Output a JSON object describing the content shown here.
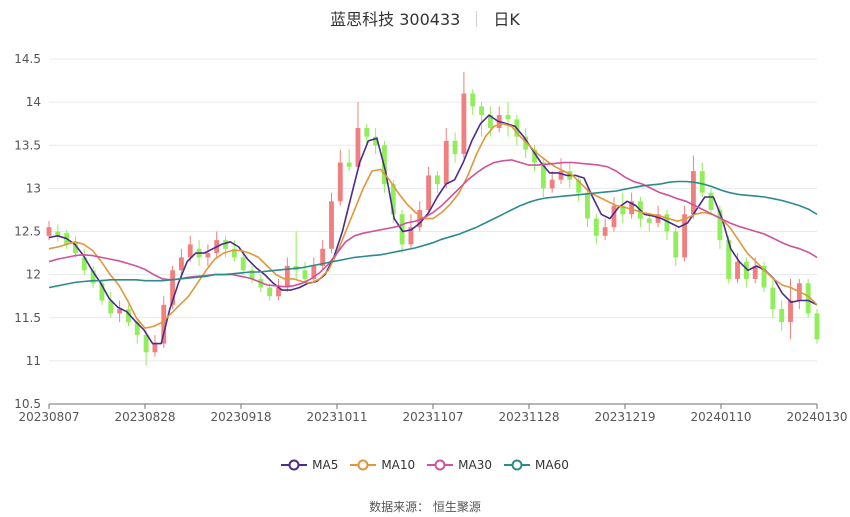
{
  "title": {
    "stock": "蓝思科技 300433",
    "period": "日K"
  },
  "source": "数据来源： 恒生聚源",
  "chart_data": {
    "type": "candlestick",
    "x_ticks": [
      "20230807",
      "20230828",
      "20230918",
      "20231011",
      "20231107",
      "20231128",
      "20231219",
      "20240110",
      "20240130"
    ],
    "y_ticks": [
      "10.5",
      "11",
      "11.5",
      "12",
      "12.5",
      "13",
      "13.5",
      "14",
      "14.5"
    ],
    "ylim": [
      10.5,
      14.5
    ],
    "grid": true,
    "legend_position": "bottom",
    "colors": {
      "up": "#f08080",
      "down": "#90ee5a",
      "MA5": "#4b2c8c",
      "MA10": "#e2963c",
      "MA30": "#d0529a",
      "MA60": "#2e8a8a"
    },
    "series": [
      {
        "name": "MA5",
        "values": [
          12.43,
          12.45,
          12.42,
          12.35,
          12.22,
          12.05,
          11.9,
          11.72,
          11.62,
          11.57,
          11.46,
          11.36,
          11.2,
          11.2,
          11.6,
          11.9,
          12.15,
          12.25,
          12.25,
          12.3,
          12.35,
          12.38,
          12.32,
          12.18,
          12.08,
          12,
          11.9,
          11.82,
          11.82,
          11.85,
          11.9,
          11.92,
          12.0,
          12.2,
          12.5,
          12.9,
          13.3,
          13.55,
          13.58,
          13.2,
          12.65,
          12.5,
          12.52,
          12.6,
          12.72,
          12.9,
          13.05,
          13.1,
          13.3,
          13.55,
          13.75,
          13.85,
          13.78,
          13.75,
          13.72,
          13.6,
          13.45,
          13.3,
          13.18,
          13.18,
          13.15,
          13.15,
          13.12,
          12.9,
          12.7,
          12.65,
          12.78,
          12.85,
          12.8,
          12.7,
          12.68,
          12.65,
          12.6,
          12.55,
          12.6,
          12.75,
          12.9,
          12.9,
          12.65,
          12.3,
          12.15,
          12.05,
          12.1,
          12.05,
          11.95,
          11.78,
          11.68,
          11.7,
          11.7,
          11.65
        ]
      },
      {
        "name": "MA10",
        "values": [
          12.3,
          12.32,
          12.35,
          12.38,
          12.35,
          12.28,
          12.15,
          12.0,
          11.88,
          11.7,
          11.5,
          11.38,
          11.4,
          11.45,
          11.55,
          11.65,
          11.75,
          11.9,
          12.05,
          12.18,
          12.25,
          12.28,
          12.28,
          12.25,
          12.2,
          12.1,
          12.0,
          11.95,
          11.95,
          11.92,
          11.9,
          11.95,
          12.05,
          12.25,
          12.5,
          12.75,
          13.0,
          13.2,
          13.22,
          13.1,
          12.95,
          12.82,
          12.72,
          12.65,
          12.65,
          12.72,
          12.82,
          12.95,
          13.15,
          13.4,
          13.6,
          13.72,
          13.75,
          13.72,
          13.6,
          13.5,
          13.4,
          13.32,
          13.25,
          13.2,
          13.15,
          13.05,
          12.95,
          12.9,
          12.85,
          12.8,
          12.78,
          12.75,
          12.72,
          12.7,
          12.68,
          12.65,
          12.62,
          12.65,
          12.7,
          12.72,
          12.7,
          12.65,
          12.55,
          12.4,
          12.25,
          12.15,
          12.05,
          11.95,
          11.88,
          11.85,
          11.8,
          11.75,
          11.65
        ]
      },
      {
        "name": "MA30",
        "values": [
          12.15,
          12.18,
          12.2,
          12.22,
          12.23,
          12.22,
          12.2,
          12.18,
          12.16,
          12.13,
          12.1,
          12.06,
          12.0,
          11.95,
          11.94,
          11.95,
          11.97,
          11.98,
          11.99,
          12.0,
          12.0,
          12.0,
          11.98,
          11.96,
          11.92,
          11.88,
          11.87,
          11.86,
          11.87,
          11.9,
          11.95,
          12.02,
          12.12,
          12.25,
          12.38,
          12.45,
          12.48,
          12.5,
          12.52,
          12.54,
          12.56,
          12.6,
          12.62,
          12.66,
          12.72,
          12.8,
          12.9,
          13.0,
          13.1,
          13.18,
          13.25,
          13.3,
          13.32,
          13.33,
          13.3,
          13.27,
          13.27,
          13.28,
          13.29,
          13.3,
          13.3,
          13.29,
          13.28,
          13.27,
          13.25,
          13.2,
          13.13,
          13.08,
          13.05,
          13.0,
          12.95,
          12.92,
          12.88,
          12.85,
          12.8,
          12.75,
          12.7,
          12.65,
          12.6,
          12.56,
          12.53,
          12.5,
          12.47,
          12.42,
          12.37,
          12.33,
          12.3,
          12.26,
          12.2
        ]
      },
      {
        "name": "MA60",
        "values": [
          11.85,
          11.87,
          11.89,
          11.91,
          11.92,
          11.93,
          11.93,
          11.94,
          11.94,
          11.94,
          11.94,
          11.93,
          11.93,
          11.93,
          11.94,
          11.95,
          11.96,
          11.97,
          11.98,
          12.0,
          12.0,
          12.01,
          12.02,
          12.03,
          12.03,
          12.04,
          12.05,
          12.06,
          12.07,
          12.08,
          12.1,
          12.12,
          12.14,
          12.16,
          12.18,
          12.2,
          12.21,
          12.22,
          12.23,
          12.25,
          12.27,
          12.29,
          12.31,
          12.34,
          12.37,
          12.41,
          12.44,
          12.47,
          12.51,
          12.55,
          12.6,
          12.65,
          12.7,
          12.75,
          12.8,
          12.84,
          12.87,
          12.89,
          12.9,
          12.91,
          12.92,
          12.93,
          12.94,
          12.95,
          12.96,
          12.97,
          12.99,
          13.01,
          13.03,
          13.04,
          13.05,
          13.07,
          13.08,
          13.08,
          13.07,
          13.05,
          13.02,
          12.98,
          12.95,
          12.93,
          12.92,
          12.91,
          12.9,
          12.88,
          12.86,
          12.83,
          12.8,
          12.76,
          12.7
        ]
      }
    ],
    "candles": [
      {
        "o": 12.45,
        "c": 12.55,
        "h": 12.62,
        "l": 12.4
      },
      {
        "o": 12.5,
        "c": 12.45,
        "h": 12.58,
        "l": 12.38
      },
      {
        "o": 12.48,
        "c": 12.35,
        "h": 12.52,
        "l": 12.3
      },
      {
        "o": 12.38,
        "c": 12.25,
        "h": 12.45,
        "l": 12.2
      },
      {
        "o": 12.2,
        "c": 12.05,
        "h": 12.3,
        "l": 12.0
      },
      {
        "o": 12.05,
        "c": 11.9,
        "h": 12.1,
        "l": 11.85
      },
      {
        "o": 11.9,
        "c": 11.7,
        "h": 11.95,
        "l": 11.65
      },
      {
        "o": 11.7,
        "c": 11.55,
        "h": 11.8,
        "l": 11.5
      },
      {
        "o": 11.55,
        "c": 11.6,
        "h": 11.7,
        "l": 11.45
      },
      {
        "o": 11.6,
        "c": 11.45,
        "h": 11.65,
        "l": 11.4
      },
      {
        "o": 11.45,
        "c": 11.3,
        "h": 11.5,
        "l": 11.2
      },
      {
        "o": 11.3,
        "c": 11.1,
        "h": 11.35,
        "l": 10.95
      },
      {
        "o": 11.1,
        "c": 11.2,
        "h": 11.3,
        "l": 11.05
      },
      {
        "o": 11.2,
        "c": 11.65,
        "h": 11.75,
        "l": 11.15
      },
      {
        "o": 11.65,
        "c": 12.05,
        "h": 12.1,
        "l": 11.6
      },
      {
        "o": 12.05,
        "c": 12.2,
        "h": 12.3,
        "l": 11.95
      },
      {
        "o": 12.2,
        "c": 12.35,
        "h": 12.45,
        "l": 12.15
      },
      {
        "o": 12.3,
        "c": 12.2,
        "h": 12.4,
        "l": 12.1
      },
      {
        "o": 12.2,
        "c": 12.25,
        "h": 12.35,
        "l": 12.1
      },
      {
        "o": 12.25,
        "c": 12.4,
        "h": 12.5,
        "l": 12.2
      },
      {
        "o": 12.4,
        "c": 12.3,
        "h": 12.45,
        "l": 12.2
      },
      {
        "o": 12.3,
        "c": 12.2,
        "h": 12.4,
        "l": 12.15
      },
      {
        "o": 12.2,
        "c": 12.05,
        "h": 12.25,
        "l": 12.0
      },
      {
        "o": 12.05,
        "c": 11.95,
        "h": 12.1,
        "l": 11.9
      },
      {
        "o": 11.95,
        "c": 11.85,
        "h": 12.0,
        "l": 11.8
      },
      {
        "o": 11.85,
        "c": 11.75,
        "h": 11.9,
        "l": 11.7
      },
      {
        "o": 11.75,
        "c": 11.85,
        "h": 11.95,
        "l": 11.7
      },
      {
        "o": 11.85,
        "c": 12.1,
        "h": 12.2,
        "l": 11.8
      },
      {
        "o": 12.1,
        "c": 12.05,
        "h": 12.5,
        "l": 11.95
      },
      {
        "o": 12.05,
        "c": 11.95,
        "h": 12.15,
        "l": 11.9
      },
      {
        "o": 11.95,
        "c": 12.1,
        "h": 12.2,
        "l": 11.9
      },
      {
        "o": 12.1,
        "c": 12.3,
        "h": 12.4,
        "l": 12.05
      },
      {
        "o": 12.3,
        "c": 12.85,
        "h": 12.95,
        "l": 12.25
      },
      {
        "o": 12.85,
        "c": 13.3,
        "h": 13.45,
        "l": 12.8
      },
      {
        "o": 13.3,
        "c": 13.25,
        "h": 13.45,
        "l": 13.2
      },
      {
        "o": 13.25,
        "c": 13.7,
        "h": 14.0,
        "l": 13.2
      },
      {
        "o": 13.7,
        "c": 13.6,
        "h": 13.75,
        "l": 13.5
      },
      {
        "o": 13.6,
        "c": 13.5,
        "h": 13.7,
        "l": 13.4
      },
      {
        "o": 13.5,
        "c": 13.05,
        "h": 13.55,
        "l": 12.95
      },
      {
        "o": 13.05,
        "c": 12.7,
        "h": 13.1,
        "l": 12.6
      },
      {
        "o": 12.7,
        "c": 12.35,
        "h": 12.75,
        "l": 12.25
      },
      {
        "o": 12.35,
        "c": 12.55,
        "h": 12.7,
        "l": 12.3
      },
      {
        "o": 12.55,
        "c": 12.75,
        "h": 12.85,
        "l": 12.5
      },
      {
        "o": 12.75,
        "c": 13.15,
        "h": 13.25,
        "l": 12.7
      },
      {
        "o": 13.15,
        "c": 13.05,
        "h": 13.2,
        "l": 12.95
      },
      {
        "o": 13.05,
        "c": 13.55,
        "h": 13.7,
        "l": 13.0
      },
      {
        "o": 13.55,
        "c": 13.4,
        "h": 13.65,
        "l": 13.3
      },
      {
        "o": 13.4,
        "c": 14.1,
        "h": 14.35,
        "l": 13.35
      },
      {
        "o": 14.1,
        "c": 13.95,
        "h": 14.15,
        "l": 13.85
      },
      {
        "o": 13.95,
        "c": 13.85,
        "h": 14.0,
        "l": 13.6
      },
      {
        "o": 13.85,
        "c": 13.7,
        "h": 13.95,
        "l": 13.6
      },
      {
        "o": 13.7,
        "c": 13.85,
        "h": 13.95,
        "l": 13.65
      },
      {
        "o": 13.85,
        "c": 13.8,
        "h": 14.0,
        "l": 13.6
      },
      {
        "o": 13.8,
        "c": 13.6,
        "h": 13.85,
        "l": 13.5
      },
      {
        "o": 13.6,
        "c": 13.45,
        "h": 13.7,
        "l": 13.35
      },
      {
        "o": 13.45,
        "c": 13.3,
        "h": 13.5,
        "l": 13.2
      },
      {
        "o": 13.3,
        "c": 13.0,
        "h": 13.35,
        "l": 12.9
      },
      {
        "o": 13.0,
        "c": 13.1,
        "h": 13.2,
        "l": 12.95
      },
      {
        "o": 13.1,
        "c": 13.2,
        "h": 13.35,
        "l": 13.05
      },
      {
        "o": 13.2,
        "c": 13.1,
        "h": 13.3,
        "l": 13.0
      },
      {
        "o": 13.1,
        "c": 12.95,
        "h": 13.15,
        "l": 12.85
      },
      {
        "o": 12.95,
        "c": 12.65,
        "h": 13.0,
        "l": 12.55
      },
      {
        "o": 12.65,
        "c": 12.45,
        "h": 12.7,
        "l": 12.35
      },
      {
        "o": 12.45,
        "c": 12.55,
        "h": 12.65,
        "l": 12.4
      },
      {
        "o": 12.55,
        "c": 12.8,
        "h": 12.9,
        "l": 12.5
      },
      {
        "o": 12.8,
        "c": 12.7,
        "h": 12.95,
        "l": 12.6
      },
      {
        "o": 12.7,
        "c": 12.85,
        "h": 12.95,
        "l": 12.65
      },
      {
        "o": 12.85,
        "c": 12.65,
        "h": 12.9,
        "l": 12.55
      },
      {
        "o": 12.65,
        "c": 12.6,
        "h": 12.7,
        "l": 12.5
      },
      {
        "o": 12.6,
        "c": 12.7,
        "h": 12.8,
        "l": 12.55
      },
      {
        "o": 12.7,
        "c": 12.5,
        "h": 12.75,
        "l": 12.4
      },
      {
        "o": 12.5,
        "c": 12.2,
        "h": 12.55,
        "l": 12.1
      },
      {
        "o": 12.2,
        "c": 12.7,
        "h": 12.8,
        "l": 12.15
      },
      {
        "o": 12.7,
        "c": 13.2,
        "h": 13.38,
        "l": 12.65
      },
      {
        "o": 13.2,
        "c": 12.95,
        "h": 13.3,
        "l": 12.9
      },
      {
        "o": 12.95,
        "c": 12.75,
        "h": 13.0,
        "l": 12.7
      },
      {
        "o": 12.75,
        "c": 12.4,
        "h": 12.8,
        "l": 12.3
      },
      {
        "o": 12.4,
        "c": 11.95,
        "h": 12.45,
        "l": 11.9
      },
      {
        "o": 11.95,
        "c": 12.15,
        "h": 12.25,
        "l": 11.9
      },
      {
        "o": 12.15,
        "c": 11.95,
        "h": 12.2,
        "l": 11.85
      },
      {
        "o": 11.95,
        "c": 12.1,
        "h": 12.2,
        "l": 11.9
      },
      {
        "o": 12.1,
        "c": 11.85,
        "h": 12.15,
        "l": 11.8
      },
      {
        "o": 11.85,
        "c": 11.6,
        "h": 11.95,
        "l": 11.5
      },
      {
        "o": 11.6,
        "c": 11.45,
        "h": 11.7,
        "l": 11.35
      },
      {
        "o": 11.45,
        "c": 11.7,
        "h": 11.95,
        "l": 11.25
      },
      {
        "o": 11.7,
        "c": 11.9,
        "h": 11.95,
        "l": 11.6
      },
      {
        "o": 11.9,
        "c": 11.55,
        "h": 11.95,
        "l": 11.5
      },
      {
        "o": 11.55,
        "c": 11.25,
        "h": 11.6,
        "l": 11.2
      }
    ]
  }
}
